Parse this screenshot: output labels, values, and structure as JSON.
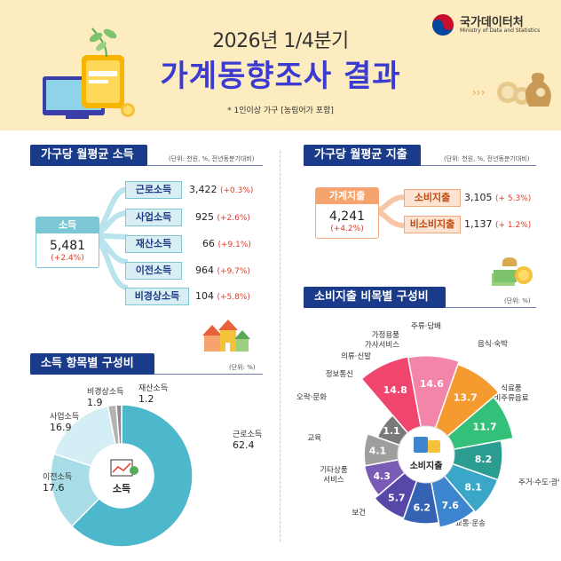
{
  "header": {
    "year_quarter": "2026년 1/4분기",
    "title": "가계동향조사 결과",
    "note": "* 1인이상 가구 [농림어가 포함]",
    "logo_name": "국가데이터처",
    "logo_sub": "Ministry of Data and Statistics"
  },
  "income": {
    "title": "가구당 월평균 소득",
    "unit": "(단위: 천원, %, 전년동분기대비)",
    "total": {
      "label": "소득",
      "value": "5,481",
      "change": "(+2.4%)"
    },
    "items": [
      {
        "label": "근로소득",
        "value": "3,422",
        "change": "(+0.3%)"
      },
      {
        "label": "사업소득",
        "value": "925",
        "change": "(+2.6%)"
      },
      {
        "label": "재산소득",
        "value": "66",
        "change": "(+9.1%)"
      },
      {
        "label": "이전소득",
        "value": "964",
        "change": "(+9.7%)"
      },
      {
        "label": "비경상소득",
        "value": "104",
        "change": "(+5.8%)"
      }
    ]
  },
  "expense": {
    "title": "가구당 월평균 지출",
    "unit": "(단위: 천원, %, 전년동분기대비)",
    "total": {
      "label": "가계지출",
      "value": "4,241",
      "change": "(+4.2%)"
    },
    "items": [
      {
        "label": "소비지출",
        "value": "3,105",
        "change": "(+ 5.3%)"
      },
      {
        "label": "비소비지출",
        "value": "1,137",
        "change": "(+ 1.2%)"
      }
    ]
  },
  "income_comp": {
    "title": "소득 항목별 구성비",
    "unit": "(단위: %)",
    "center_label": "소득"
  },
  "consump_comp": {
    "title": "소비지출 비목별 구성비",
    "unit": "(단위: %)",
    "center_label": "소비지출"
  },
  "chart_data": [
    {
      "type": "pie",
      "title": "소득 항목별 구성비",
      "unit": "%",
      "categories": [
        "근로소득",
        "이전소득",
        "사업소득",
        "비경상소득",
        "재산소득"
      ],
      "values": [
        62.4,
        17.6,
        16.9,
        1.9,
        1.2
      ],
      "colors": [
        "#4db8cc",
        "#a8dde8",
        "#d3eef4",
        "#b3b3b3",
        "#8c8c8c"
      ]
    },
    {
      "type": "pie",
      "title": "소비지출 비목별 구성비",
      "unit": "%",
      "categories": [
        "음식·숙박",
        "식료품 비주류음료",
        "주거·수도·광열",
        "교통·운송",
        "보건",
        "기타상품 서비스",
        "교육",
        "오락·문화",
        "정보통신",
        "의류·신발",
        "가정용품 가사서비스",
        "주류·담배"
      ],
      "values": [
        14.8,
        14.6,
        13.7,
        11.7,
        8.2,
        8.1,
        7.6,
        6.2,
        5.7,
        4.3,
        4.1,
        1.1
      ],
      "colors": [
        "#f0466e",
        "#f285a8",
        "#f59a2e",
        "#33c17a",
        "#2a9c90",
        "#3aa7c9",
        "#3d86cf",
        "#3662b3",
        "#5548a8",
        "#7a5bb5",
        "#9e9e9e",
        "#7a7a7a"
      ]
    }
  ]
}
